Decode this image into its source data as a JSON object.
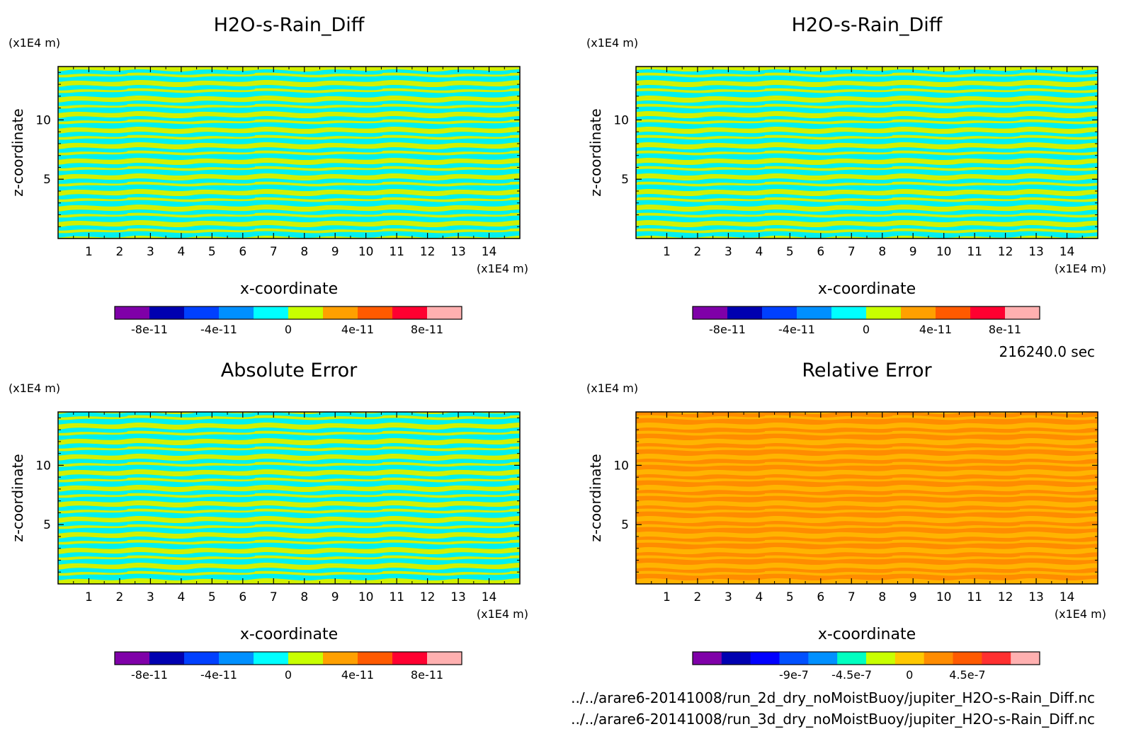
{
  "chart_data": [
    {
      "type": "heatmap",
      "title": "H2O-s-Rain_Diff",
      "xlabel": "x-coordinate",
      "ylabel": "z-coordinate",
      "x_unit": "(x1E4 m)",
      "y_unit": "(x1E4 m)",
      "xlim": [
        0,
        15
      ],
      "ylim": [
        0,
        14.5
      ],
      "x_ticks": [
        "1",
        "2",
        "3",
        "4",
        "5",
        "6",
        "7",
        "8",
        "9",
        "10",
        "11",
        "12",
        "13",
        "14"
      ],
      "y_ticks": [
        "5",
        "10"
      ],
      "colorbar": {
        "ticks": [
          "-8e-11",
          "-4e-11",
          "0",
          "4e-11",
          "8e-11"
        ],
        "colors": [
          "#7f00a8",
          "#0000b0",
          "#0040ff",
          "#0090ff",
          "#00ffff",
          "#c8ff00",
          "#ffa000",
          "#ff5a00",
          "#ff0030",
          "#ffb0b0"
        ]
      },
      "dominant_colors": [
        "#00f0f0",
        "#d2f000"
      ]
    },
    {
      "type": "heatmap",
      "title": "H2O-s-Rain_Diff",
      "xlabel": "x-coordinate",
      "ylabel": "z-coordinate",
      "x_unit": "(x1E4 m)",
      "y_unit": "(x1E4 m)",
      "xlim": [
        0,
        15
      ],
      "ylim": [
        0,
        14.5
      ],
      "x_ticks": [
        "1",
        "2",
        "3",
        "4",
        "5",
        "6",
        "7",
        "8",
        "9",
        "10",
        "11",
        "12",
        "13",
        "14"
      ],
      "y_ticks": [
        "5",
        "10"
      ],
      "colorbar": {
        "ticks": [
          "-8e-11",
          "-4e-11",
          "0",
          "4e-11",
          "8e-11"
        ],
        "colors": [
          "#7f00a8",
          "#0000b0",
          "#0040ff",
          "#0090ff",
          "#00ffff",
          "#c8ff00",
          "#ffa000",
          "#ff5a00",
          "#ff0030",
          "#ffb0b0"
        ]
      },
      "dominant_colors": [
        "#00f0f0",
        "#d2f000"
      ]
    },
    {
      "type": "heatmap",
      "title": "Absolute Error",
      "xlabel": "x-coordinate",
      "ylabel": "z-coordinate",
      "x_unit": "(x1E4 m)",
      "y_unit": "(x1E4 m)",
      "xlim": [
        0,
        15
      ],
      "ylim": [
        0,
        14.5
      ],
      "x_ticks": [
        "1",
        "2",
        "3",
        "4",
        "5",
        "6",
        "7",
        "8",
        "9",
        "10",
        "11",
        "12",
        "13",
        "14"
      ],
      "y_ticks": [
        "5",
        "10"
      ],
      "colorbar": {
        "ticks": [
          "-8e-11",
          "-4e-11",
          "0",
          "4e-11",
          "8e-11"
        ],
        "colors": [
          "#7f00a8",
          "#0000b0",
          "#0040ff",
          "#0090ff",
          "#00ffff",
          "#c8ff00",
          "#ffa000",
          "#ff5a00",
          "#ff0030",
          "#ffb0b0"
        ]
      },
      "dominant_colors": [
        "#00f0f0",
        "#d2f000"
      ]
    },
    {
      "type": "heatmap",
      "title": "Relative Error",
      "xlabel": "x-coordinate",
      "ylabel": "z-coordinate",
      "x_unit": "(x1E4 m)",
      "y_unit": "(x1E4 m)",
      "xlim": [
        0,
        15
      ],
      "ylim": [
        0,
        14.5
      ],
      "x_ticks": [
        "1",
        "2",
        "3",
        "4",
        "5",
        "6",
        "7",
        "8",
        "9",
        "10",
        "11",
        "12",
        "13",
        "14"
      ],
      "y_ticks": [
        "5",
        "10"
      ],
      "colorbar": {
        "ticks": [
          "-9e-7",
          "-4.5e-7",
          "0",
          "4.5e-7"
        ],
        "colors": [
          "#7f00a8",
          "#0000b0",
          "#0000ff",
          "#0050ff",
          "#0090ff",
          "#00ffc0",
          "#c8ff00",
          "#ffc800",
          "#ff8c00",
          "#ff5a00",
          "#ff3030",
          "#ffb0b0"
        ]
      },
      "dominant_colors": [
        "#ff8c00",
        "#ffb400"
      ]
    }
  ],
  "time_label": "216240.0 sec",
  "files": [
    "../../arare6-20141008/run_2d_dry_noMoistBuoy/jupiter_H2O-s-Rain_Diff.nc",
    "../../arare6-20141008/run_3d_dry_noMoistBuoy/jupiter_H2O-s-Rain_Diff.nc"
  ]
}
